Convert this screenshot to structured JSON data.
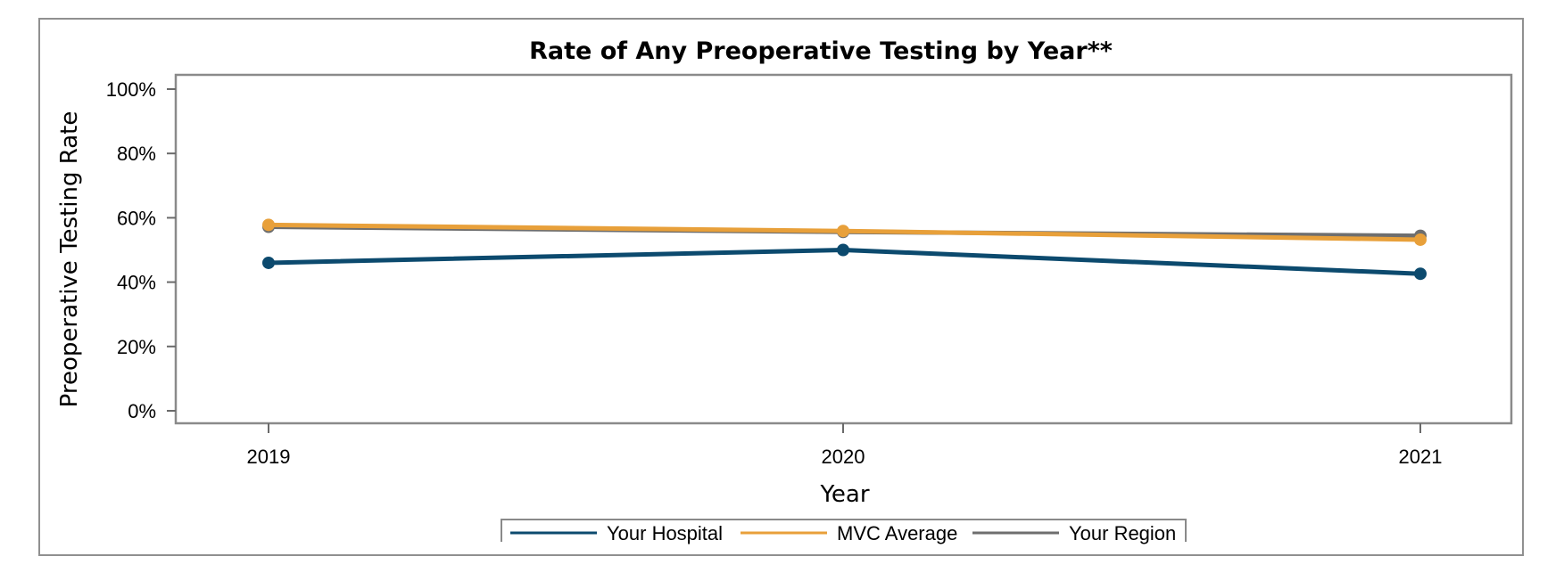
{
  "chart_data": {
    "type": "line",
    "title": "Rate of Any Preoperative Testing by Year**",
    "xlabel": "Year",
    "ylabel": "Preoperative Testing Rate",
    "categories": [
      "2019",
      "2020",
      "2021"
    ],
    "ylim": [
      0,
      100
    ],
    "yticks": [
      "0%",
      "20%",
      "40%",
      "60%",
      "80%",
      "100%"
    ],
    "ytick_values": [
      0,
      20,
      40,
      60,
      80,
      100
    ],
    "grid": false,
    "legend_position": "bottom",
    "series": [
      {
        "name": "Your Region",
        "values": [
          57.2,
          55.6,
          54.4
        ],
        "color": "#6e6e6e"
      },
      {
        "name": "MVC Average",
        "values": [
          57.8,
          55.9,
          53.2
        ],
        "color": "#e8a03a"
      },
      {
        "name": "Your Hospital",
        "values": [
          46.0,
          50.0,
          42.6
        ],
        "color": "#0c4a6e"
      }
    ],
    "legend_order": [
      "Your Hospital",
      "MVC Average",
      "Your Region"
    ]
  }
}
